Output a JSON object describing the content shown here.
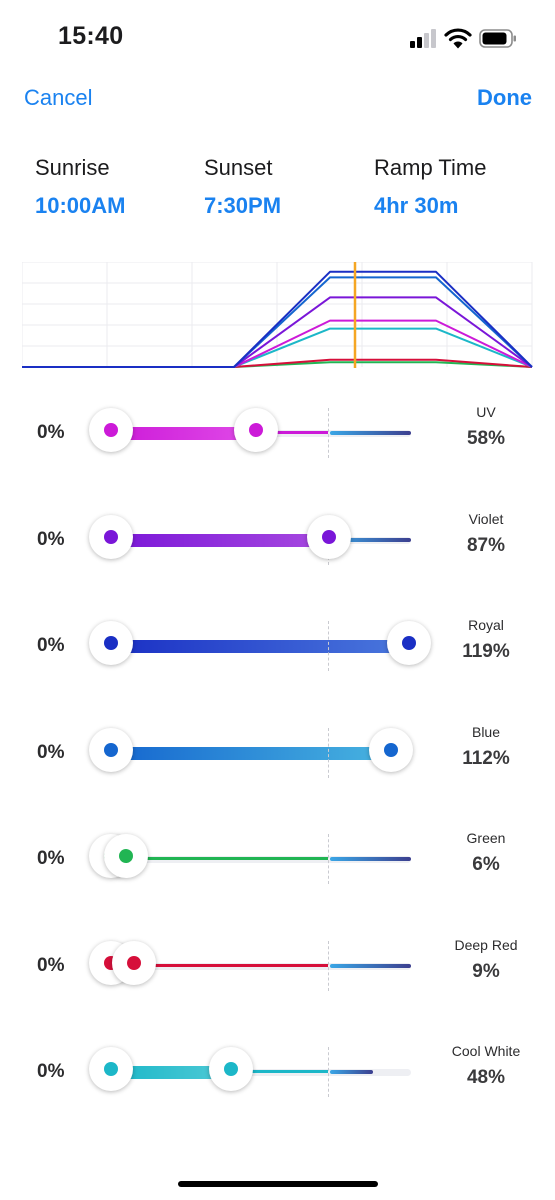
{
  "status_bar": {
    "time": "15:40",
    "icons": [
      "signal-icon",
      "wifi-icon",
      "battery-icon"
    ]
  },
  "nav": {
    "cancel_label": "Cancel",
    "done_label": "Done"
  },
  "schedule": [
    {
      "label": "Sunrise",
      "value": "10:00AM"
    },
    {
      "label": "Sunset",
      "value": "7:30PM"
    },
    {
      "label": "Ramp Time",
      "value": "4hr 30m"
    }
  ],
  "channels": [
    {
      "name": "UV",
      "min_label": "0%",
      "min_pct": 0,
      "value_label": "58%",
      "value_pct": 58,
      "color": "#cc1ad8",
      "color_light": "#e04be8"
    },
    {
      "name": "Violet",
      "min_label": "0%",
      "min_pct": 0,
      "value_label": "87%",
      "value_pct": 87,
      "color": "#7a16d8",
      "color_light": "#a84ae0"
    },
    {
      "name": "Royal",
      "min_label": "0%",
      "min_pct": 0,
      "value_label": "119%",
      "value_pct": 119,
      "color": "#1a2fc4",
      "color_light": "#4a78dd"
    },
    {
      "name": "Blue",
      "min_label": "0%",
      "min_pct": 0,
      "value_label": "112%",
      "value_pct": 112,
      "color": "#1566cf",
      "color_light": "#48b4e0"
    },
    {
      "name": "Green",
      "min_label": "0%",
      "min_pct": 0,
      "value_label": "6%",
      "value_pct": 6,
      "color": "#21b553",
      "color_light": "#68cc90"
    },
    {
      "name": "Deep Red",
      "min_label": "0%",
      "min_pct": 0,
      "value_label": "9%",
      "value_pct": 9,
      "color": "#d60f3a",
      "color_light": "#e67a64"
    },
    {
      "name": "Cool White",
      "min_label": "0%",
      "min_pct": 0,
      "value_label": "48%",
      "value_pct": 48,
      "color": "#1cb7c8",
      "color_light": "#4fcad6"
    }
  ],
  "colors": {
    "accent": "#1a82f0",
    "current_time_marker": "#f5a623",
    "remainder_start": "#3aa6e6",
    "remainder_end": "#3c3f8f"
  }
}
